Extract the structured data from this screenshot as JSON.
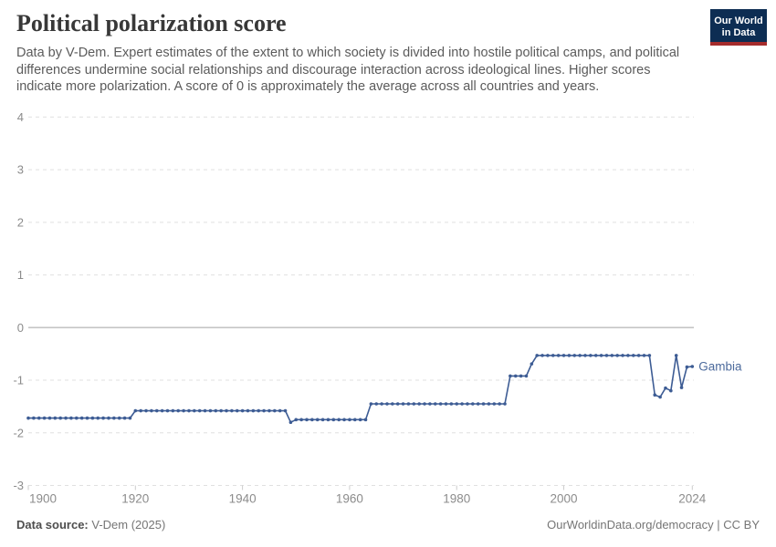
{
  "header": {
    "title": "Political polarization score",
    "subtitle": "Data by V-Dem. Expert estimates of the extent to which society is divided into hostile political camps, and political differences undermine social relationships and discourage interaction across ideological lines. Higher scores indicate more polarization. A score of 0 is approximately the average across all countries and years."
  },
  "logo": {
    "line1": "Our World",
    "line2": "in Data",
    "bg_color": "#0d2d53",
    "stripe_color": "#a52c2c"
  },
  "footer": {
    "source_label": "Data source:",
    "source_value": " V-Dem (2025)",
    "right_text": "OurWorldinData.org/democracy | CC BY"
  },
  "chart_data": {
    "type": "line",
    "title": "Political polarization score",
    "xlabel": "",
    "ylabel": "",
    "xlim": [
      1900,
      2024
    ],
    "ylim": [
      -3,
      4
    ],
    "x_ticks": [
      1900,
      1920,
      1940,
      1960,
      1980,
      2000,
      2024
    ],
    "y_ticks": [
      4,
      3,
      2,
      1,
      0,
      -1,
      -2,
      -3
    ],
    "grid": "horizontal-dashed",
    "legend_position": "end-of-line-label",
    "colors": {
      "line": "#3d5c94",
      "entity_label": "#4c6a9c",
      "grid": "#e0e0e0",
      "zero_line": "#c4c4c4",
      "axis_label": "#8c8c8c",
      "tick_mark": "#cccccc"
    },
    "series": [
      {
        "name": "Gambia",
        "points": [
          [
            1900,
            -1.72
          ],
          [
            1901,
            -1.72
          ],
          [
            1902,
            -1.72
          ],
          [
            1903,
            -1.72
          ],
          [
            1904,
            -1.72
          ],
          [
            1905,
            -1.72
          ],
          [
            1906,
            -1.72
          ],
          [
            1907,
            -1.72
          ],
          [
            1908,
            -1.72
          ],
          [
            1909,
            -1.72
          ],
          [
            1910,
            -1.72
          ],
          [
            1911,
            -1.72
          ],
          [
            1912,
            -1.72
          ],
          [
            1913,
            -1.72
          ],
          [
            1914,
            -1.72
          ],
          [
            1915,
            -1.72
          ],
          [
            1916,
            -1.72
          ],
          [
            1917,
            -1.72
          ],
          [
            1918,
            -1.72
          ],
          [
            1919,
            -1.72
          ],
          [
            1920,
            -1.58
          ],
          [
            1921,
            -1.58
          ],
          [
            1922,
            -1.58
          ],
          [
            1923,
            -1.58
          ],
          [
            1924,
            -1.58
          ],
          [
            1925,
            -1.58
          ],
          [
            1926,
            -1.58
          ],
          [
            1927,
            -1.58
          ],
          [
            1928,
            -1.58
          ],
          [
            1929,
            -1.58
          ],
          [
            1930,
            -1.58
          ],
          [
            1931,
            -1.58
          ],
          [
            1932,
            -1.58
          ],
          [
            1933,
            -1.58
          ],
          [
            1934,
            -1.58
          ],
          [
            1935,
            -1.58
          ],
          [
            1936,
            -1.58
          ],
          [
            1937,
            -1.58
          ],
          [
            1938,
            -1.58
          ],
          [
            1939,
            -1.58
          ],
          [
            1940,
            -1.58
          ],
          [
            1941,
            -1.58
          ],
          [
            1942,
            -1.58
          ],
          [
            1943,
            -1.58
          ],
          [
            1944,
            -1.58
          ],
          [
            1945,
            -1.58
          ],
          [
            1946,
            -1.58
          ],
          [
            1947,
            -1.58
          ],
          [
            1948,
            -1.58
          ],
          [
            1949,
            -1.8
          ],
          [
            1950,
            -1.75
          ],
          [
            1951,
            -1.75
          ],
          [
            1952,
            -1.75
          ],
          [
            1953,
            -1.75
          ],
          [
            1954,
            -1.75
          ],
          [
            1955,
            -1.75
          ],
          [
            1956,
            -1.75
          ],
          [
            1957,
            -1.75
          ],
          [
            1958,
            -1.75
          ],
          [
            1959,
            -1.75
          ],
          [
            1960,
            -1.75
          ],
          [
            1961,
            -1.75
          ],
          [
            1962,
            -1.75
          ],
          [
            1963,
            -1.75
          ],
          [
            1964,
            -1.45
          ],
          [
            1965,
            -1.45
          ],
          [
            1966,
            -1.45
          ],
          [
            1967,
            -1.45
          ],
          [
            1968,
            -1.45
          ],
          [
            1969,
            -1.45
          ],
          [
            1970,
            -1.45
          ],
          [
            1971,
            -1.45
          ],
          [
            1972,
            -1.45
          ],
          [
            1973,
            -1.45
          ],
          [
            1974,
            -1.45
          ],
          [
            1975,
            -1.45
          ],
          [
            1976,
            -1.45
          ],
          [
            1977,
            -1.45
          ],
          [
            1978,
            -1.45
          ],
          [
            1979,
            -1.45
          ],
          [
            1980,
            -1.45
          ],
          [
            1981,
            -1.45
          ],
          [
            1982,
            -1.45
          ],
          [
            1983,
            -1.45
          ],
          [
            1984,
            -1.45
          ],
          [
            1985,
            -1.45
          ],
          [
            1986,
            -1.45
          ],
          [
            1987,
            -1.45
          ],
          [
            1988,
            -1.45
          ],
          [
            1989,
            -1.45
          ],
          [
            1990,
            -0.92
          ],
          [
            1991,
            -0.92
          ],
          [
            1992,
            -0.92
          ],
          [
            1993,
            -0.92
          ],
          [
            1994,
            -0.69
          ],
          [
            1995,
            -0.53
          ],
          [
            1996,
            -0.53
          ],
          [
            1997,
            -0.53
          ],
          [
            1998,
            -0.53
          ],
          [
            1999,
            -0.53
          ],
          [
            2000,
            -0.53
          ],
          [
            2001,
            -0.53
          ],
          [
            2002,
            -0.53
          ],
          [
            2003,
            -0.53
          ],
          [
            2004,
            -0.53
          ],
          [
            2005,
            -0.53
          ],
          [
            2006,
            -0.53
          ],
          [
            2007,
            -0.53
          ],
          [
            2008,
            -0.53
          ],
          [
            2009,
            -0.53
          ],
          [
            2010,
            -0.53
          ],
          [
            2011,
            -0.53
          ],
          [
            2012,
            -0.53
          ],
          [
            2013,
            -0.53
          ],
          [
            2014,
            -0.53
          ],
          [
            2015,
            -0.53
          ],
          [
            2016,
            -0.53
          ],
          [
            2017,
            -1.28
          ],
          [
            2018,
            -1.32
          ],
          [
            2019,
            -1.15
          ],
          [
            2020,
            -1.2
          ],
          [
            2021,
            -0.53
          ],
          [
            2022,
            -1.14
          ],
          [
            2023,
            -0.75
          ],
          [
            2024,
            -0.74
          ]
        ]
      }
    ]
  }
}
